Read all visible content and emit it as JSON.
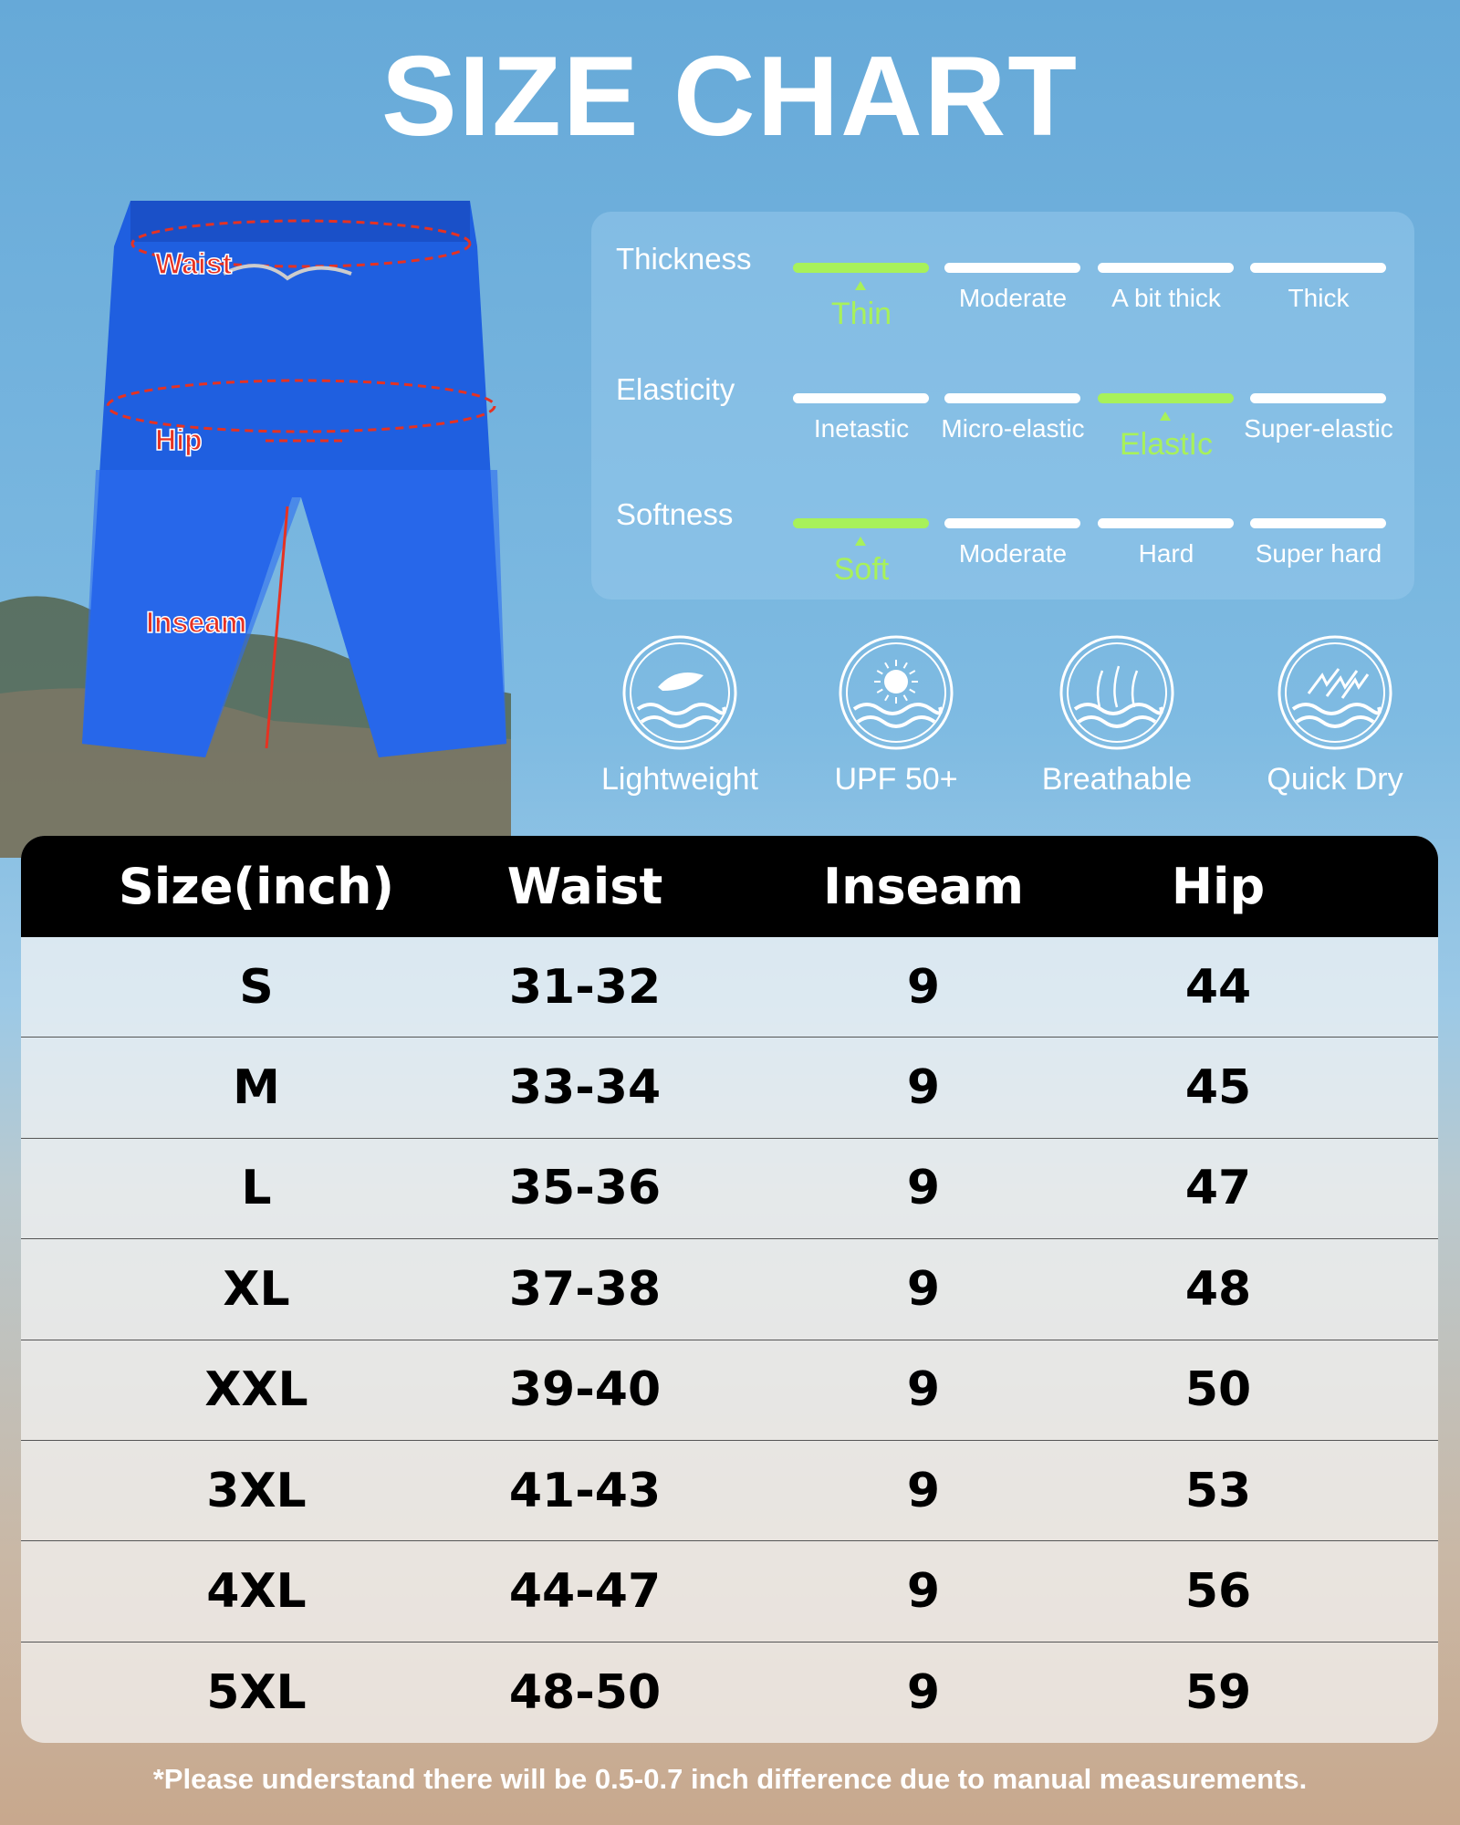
{
  "title": "SIZE CHART",
  "colors": {
    "accent": "#a8f15a",
    "header": "#000000",
    "shorts": "#1f5fe0",
    "measure": "#e63222"
  },
  "diagram": {
    "labels": [
      "Waist",
      "Hip",
      "Inseam"
    ]
  },
  "attributes": [
    {
      "name": "Thickness",
      "options": [
        "Thin",
        "Moderate",
        "A bit thick",
        "Thick"
      ],
      "selected": 0
    },
    {
      "name": "Elasticity",
      "options": [
        "Inetastic",
        "Micro-elastic",
        "ElastIc",
        "Super-elastic"
      ],
      "selected": 2
    },
    {
      "name": "Softness",
      "options": [
        "Soft",
        "Moderate",
        "Hard",
        "Super hard"
      ],
      "selected": 0
    }
  ],
  "features": [
    {
      "label": "Lightweight",
      "icon": "feather-wave-icon"
    },
    {
      "label": "UPF 50+",
      "icon": "sun-wave-icon"
    },
    {
      "label": "Breathable",
      "icon": "air-flow-icon"
    },
    {
      "label": "Quick Dry",
      "icon": "quick-dry-icon"
    }
  ],
  "table": {
    "headers": [
      "Size(inch)",
      "Waist",
      "Inseam",
      "Hip"
    ],
    "rows": [
      [
        "S",
        "31-32",
        "9",
        "44"
      ],
      [
        "M",
        "33-34",
        "9",
        "45"
      ],
      [
        "L",
        "35-36",
        "9",
        "47"
      ],
      [
        "XL",
        "37-38",
        "9",
        "48"
      ],
      [
        "XXL",
        "39-40",
        "9",
        "50"
      ],
      [
        "3XL",
        "41-43",
        "9",
        "53"
      ],
      [
        "4XL",
        "44-47",
        "9",
        "56"
      ],
      [
        "5XL",
        "48-50",
        "9",
        "59"
      ]
    ]
  },
  "footnote": "*Please understand there will be 0.5-0.7 inch difference due to manual measurements."
}
